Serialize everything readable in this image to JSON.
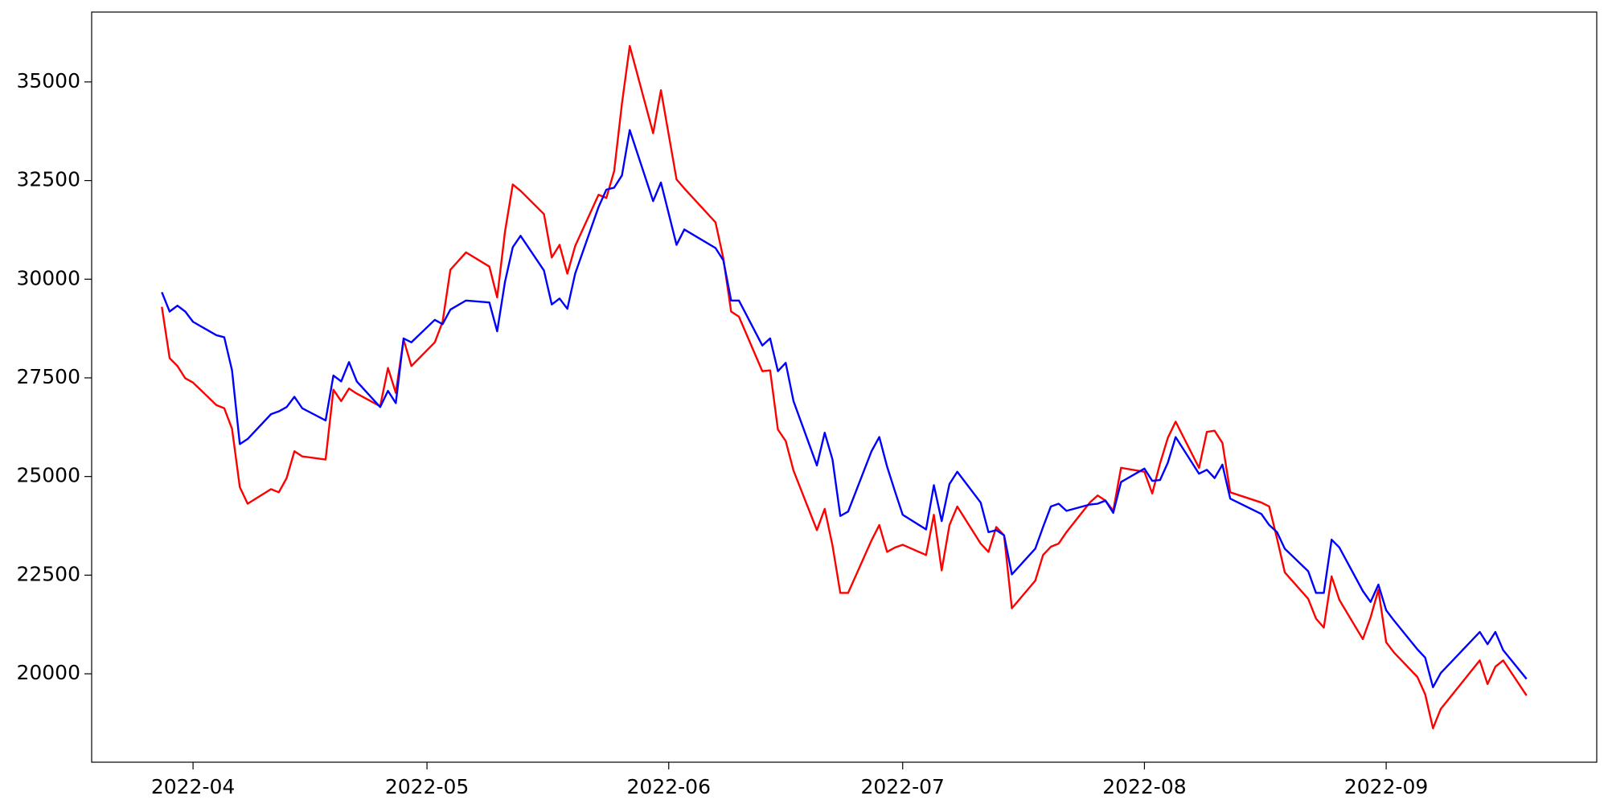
{
  "chart_data": {
    "type": "line",
    "x": [
      "2022-03-28",
      "2022-03-29",
      "2022-03-30",
      "2022-03-31",
      "2022-04-01",
      "2022-04-04",
      "2022-04-05",
      "2022-04-06",
      "2022-04-07",
      "2022-04-08",
      "2022-04-11",
      "2022-04-12",
      "2022-04-13",
      "2022-04-14",
      "2022-04-15",
      "2022-04-18",
      "2022-04-19",
      "2022-04-20",
      "2022-04-21",
      "2022-04-22",
      "2022-04-25",
      "2022-04-26",
      "2022-04-27",
      "2022-04-28",
      "2022-04-29",
      "2022-05-02",
      "2022-05-03",
      "2022-05-04",
      "2022-05-06",
      "2022-05-09",
      "2022-05-10",
      "2022-05-11",
      "2022-05-12",
      "2022-05-13",
      "2022-05-16",
      "2022-05-17",
      "2022-05-18",
      "2022-05-19",
      "2022-05-20",
      "2022-05-23",
      "2022-05-24",
      "2022-05-25",
      "2022-05-26",
      "2022-05-27",
      "2022-05-30",
      "2022-05-31",
      "2022-06-02",
      "2022-06-03",
      "2022-06-07",
      "2022-06-08",
      "2022-06-09",
      "2022-06-10",
      "2022-06-13",
      "2022-06-14",
      "2022-06-15",
      "2022-06-16",
      "2022-06-17",
      "2022-06-20",
      "2022-06-21",
      "2022-06-22",
      "2022-06-23",
      "2022-06-24",
      "2022-06-27",
      "2022-06-28",
      "2022-06-29",
      "2022-06-30",
      "2022-07-01",
      "2022-07-04",
      "2022-07-05",
      "2022-07-06",
      "2022-07-07",
      "2022-07-08",
      "2022-07-11",
      "2022-07-12",
      "2022-07-13",
      "2022-07-14",
      "2022-07-15",
      "2022-07-18",
      "2022-07-19",
      "2022-07-20",
      "2022-07-21",
      "2022-07-22",
      "2022-07-25",
      "2022-07-26",
      "2022-07-27",
      "2022-07-28",
      "2022-07-29",
      "2022-08-01",
      "2022-08-02",
      "2022-08-03",
      "2022-08-04",
      "2022-08-05",
      "2022-08-08",
      "2022-08-09",
      "2022-08-10",
      "2022-08-11",
      "2022-08-12",
      "2022-08-16",
      "2022-08-17",
      "2022-08-18",
      "2022-08-19",
      "2022-08-22",
      "2022-08-23",
      "2022-08-24",
      "2022-08-25",
      "2022-08-26",
      "2022-08-29",
      "2022-08-30",
      "2022-08-31",
      "2022-09-01",
      "2022-09-02",
      "2022-09-05",
      "2022-09-06",
      "2022-09-07",
      "2022-09-08",
      "2022-09-13",
      "2022-09-14",
      "2022-09-15",
      "2022-09-16",
      "2022-09-19"
    ],
    "series": [
      {
        "color": "#ff0000",
        "values": [
          29300,
          28000,
          27800,
          27490,
          27380,
          26810,
          26730,
          26210,
          24730,
          24310,
          24680,
          24600,
          24960,
          25640,
          25510,
          25430,
          27200,
          26910,
          27230,
          27100,
          26780,
          27750,
          27120,
          28470,
          27800,
          28400,
          28920,
          30240,
          30680,
          30320,
          29540,
          31200,
          32400,
          32240,
          31650,
          30550,
          30870,
          30140,
          30840,
          32140,
          32060,
          32740,
          34450,
          35910,
          33700,
          34790,
          32530,
          32300,
          31440,
          30530,
          29180,
          29050,
          27670,
          27690,
          26190,
          25900,
          25150,
          23640,
          24180,
          23250,
          22050,
          22050,
          23380,
          23770,
          23090,
          23200,
          23270,
          23010,
          24030,
          22620,
          23770,
          24240,
          23300,
          23090,
          23720,
          23510,
          21660,
          22360,
          23010,
          23220,
          23300,
          23590,
          24340,
          24520,
          24390,
          24130,
          25220,
          25120,
          24570,
          25330,
          25980,
          26390,
          25220,
          26130,
          26160,
          25850,
          24600,
          24340,
          24240,
          23430,
          22570,
          21900,
          21400,
          21170,
          22470,
          21870,
          20880,
          21430,
          22130,
          20800,
          20540,
          19920,
          19480,
          18620,
          19110,
          20340,
          19740,
          20180,
          20340,
          19450
        ]
      },
      {
        "color": "#0000ff",
        "values": [
          29670,
          29180,
          29330,
          29180,
          28920,
          28580,
          28530,
          27690,
          25820,
          25950,
          26580,
          26650,
          26760,
          27020,
          26730,
          26420,
          27560,
          27410,
          27900,
          27410,
          26760,
          27170,
          26860,
          28500,
          28400,
          28970,
          28860,
          29230,
          29460,
          29410,
          28680,
          29930,
          30810,
          31100,
          30220,
          29360,
          29510,
          29250,
          30140,
          31830,
          32270,
          32320,
          32630,
          33780,
          31980,
          32450,
          30870,
          31260,
          30790,
          30480,
          29460,
          29460,
          28320,
          28500,
          27670,
          27880,
          26910,
          25280,
          26110,
          25430,
          24000,
          24110,
          25640,
          26000,
          25250,
          24630,
          24030,
          23660,
          24780,
          23870,
          24810,
          25120,
          24340,
          23590,
          23640,
          23510,
          22520,
          23170,
          23720,
          24240,
          24310,
          24130,
          24290,
          24310,
          24390,
          24080,
          24860,
          25200,
          24890,
          24910,
          25350,
          26000,
          25070,
          25170,
          24960,
          25300,
          24440,
          24050,
          23770,
          23590,
          23170,
          22600,
          22050,
          22050,
          23400,
          23200,
          22100,
          21820,
          22260,
          21610,
          21350,
          20620,
          20410,
          19660,
          20020,
          21060,
          20750,
          21060,
          20600,
          19870
        ]
      }
    ],
    "xlim": [
      "2022-03-19",
      "2022-09-28"
    ],
    "xticks": [
      {
        "value": "2022-04-01",
        "label": "2022-04"
      },
      {
        "value": "2022-05-01",
        "label": "2022-05"
      },
      {
        "value": "2022-06-01",
        "label": "2022-06"
      },
      {
        "value": "2022-07-01",
        "label": "2022-07"
      },
      {
        "value": "2022-08-01",
        "label": "2022-08"
      },
      {
        "value": "2022-09-01",
        "label": "2022-09"
      }
    ],
    "ylim": [
      17760,
      36770
    ],
    "yticks": [
      20000,
      22500,
      25000,
      27500,
      30000,
      32500,
      35000
    ],
    "grid": false
  }
}
